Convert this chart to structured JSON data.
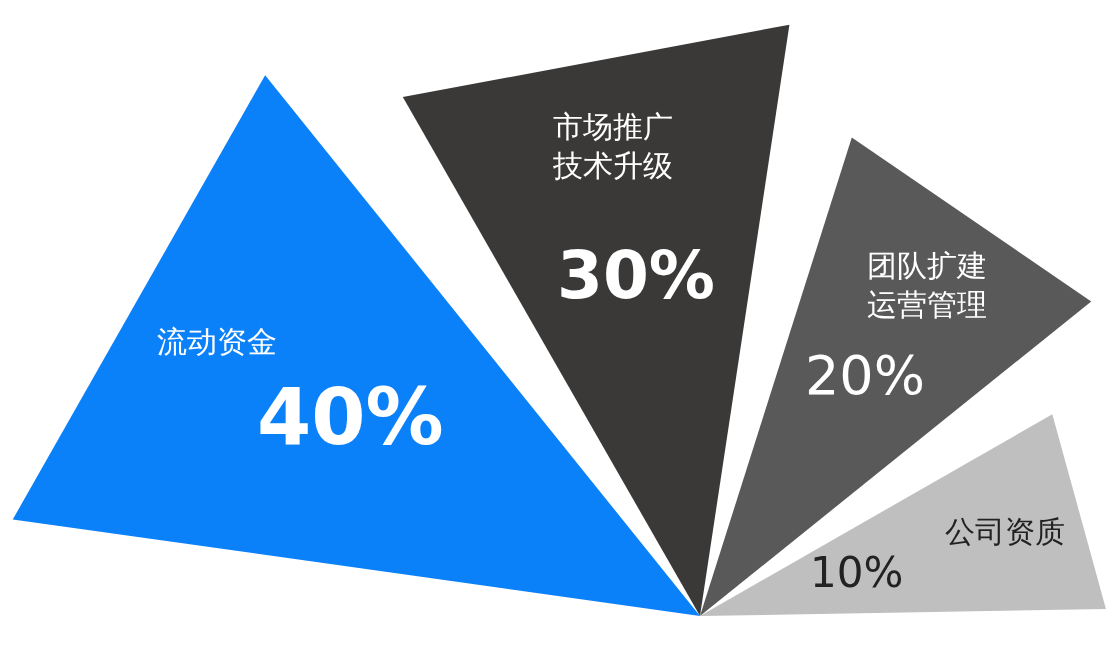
{
  "chart_data": {
    "type": "other",
    "categories": [
      "流动资金",
      "市场推广技术升级",
      "团队扩建运营管理",
      "公司资质"
    ],
    "values": [
      40,
      30,
      20,
      10
    ],
    "value_labels": [
      "40%",
      "30%",
      "20%",
      "10%"
    ],
    "colors": [
      "#0a80f9",
      "#3a3938",
      "#595959",
      "#bfbfbf"
    ]
  }
}
